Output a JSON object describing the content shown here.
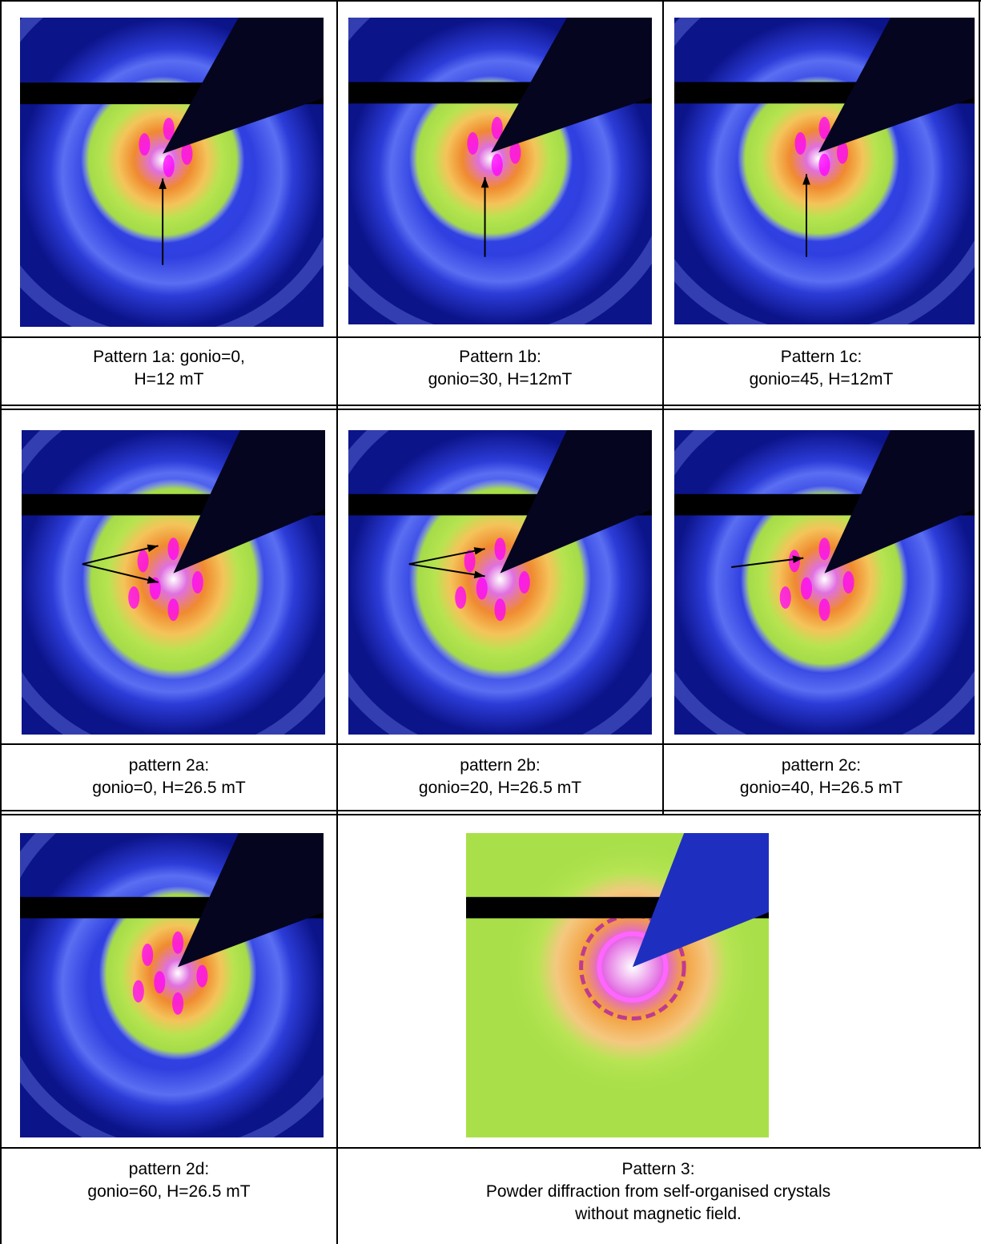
{
  "table": {
    "rows": [
      {
        "cells": [
          {
            "caption": [
              "Pattern 1a: gonio=0,",
              "H=12 mT"
            ]
          },
          {
            "caption": [
              "Pattern 1b:",
              "gonio=30, H=12mT"
            ]
          },
          {
            "caption": [
              "Pattern 1c:",
              "gonio=45, H=12mT"
            ]
          }
        ]
      },
      {
        "cells": [
          {
            "caption": [
              "pattern 2a:",
              "gonio=0, H=26.5 mT"
            ]
          },
          {
            "caption": [
              "pattern 2b:",
              "gonio=20, H=26.5 mT"
            ]
          },
          {
            "caption": [
              "pattern 2c:",
              "gonio=40, H=26.5 mT"
            ]
          }
        ]
      },
      {
        "cells": [
          {
            "caption": [
              "pattern 2d:",
              "gonio=60, H=26.5 mT"
            ]
          },
          {
            "caption": [
              "Pattern 3:",
              "Powder diffraction from self-organised crystals",
              "without magnetic field."
            ]
          }
        ]
      }
    ]
  }
}
